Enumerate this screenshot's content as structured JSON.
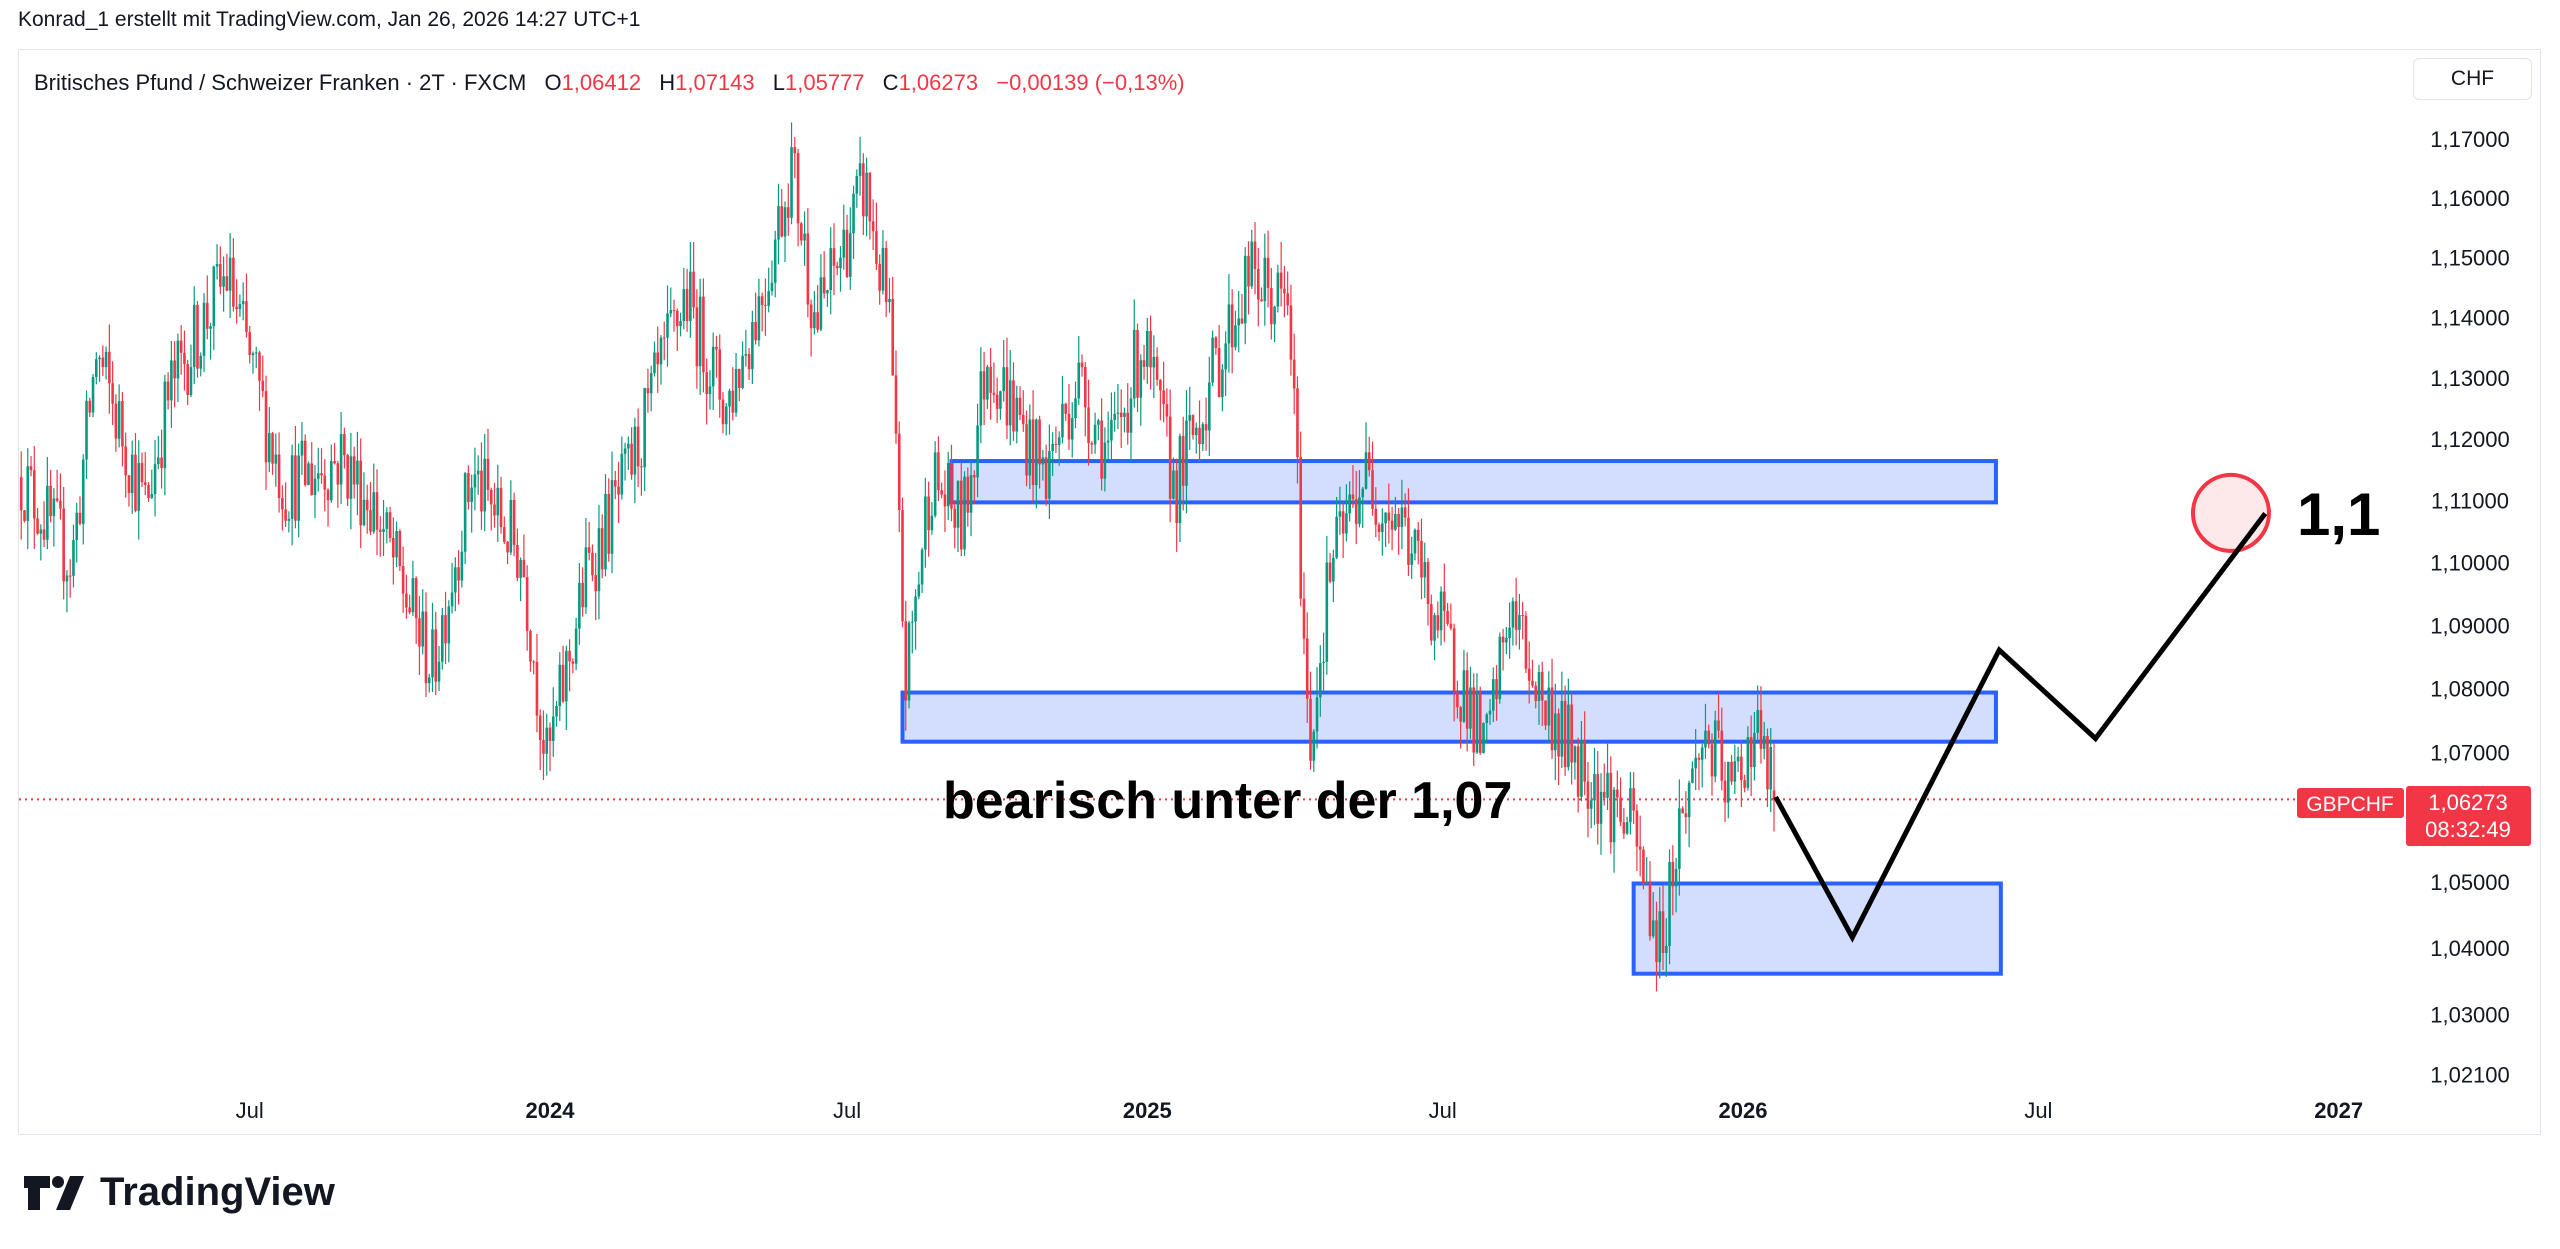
{
  "credit": "Konrad_1 erstellt mit TradingView.com, Jan 26, 2026 14:27 UTC+1",
  "legend": {
    "title": "Britisches Pfund / Schweizer Franken · 2T · FXCM",
    "o_label": "O",
    "o": "1,06412",
    "h_label": "H",
    "h": "1,07143",
    "l_label": "L",
    "l": "1,05777",
    "c_label": "C",
    "c": "1,06273",
    "change": "−0,00139 (−0,13%)"
  },
  "currency": "CHF",
  "price_label": {
    "symbol": "GBPCHF",
    "price": "1,06273",
    "countdown": "08:32:49"
  },
  "brand": "TradingView",
  "annotations": {
    "text_bearish": "bearisch unter der 1,07",
    "text_target": "1,1"
  },
  "colors": {
    "up": "#089981",
    "down": "#F23645",
    "zone_fill": "#d3defe",
    "zone_border": "#2962ff",
    "path": "#000000",
    "target_circle": "#F23645"
  },
  "chart_data": {
    "type": "candlestick",
    "symbol": "GBPCHF",
    "interval": "2T",
    "y_scale": "log",
    "ylim": [
      1.021,
      1.175
    ],
    "y_ticks": [
      "1,17000",
      "1,16000",
      "1,15000",
      "1,14000",
      "1,13000",
      "1,12000",
      "1,11000",
      "1,10000",
      "1,09000",
      "1,08000",
      "1,07000",
      "1,05000",
      "1,04000",
      "1,03000",
      "1,02100"
    ],
    "y_tick_values": [
      1.17,
      1.16,
      1.15,
      1.14,
      1.13,
      1.12,
      1.11,
      1.1,
      1.09,
      1.08,
      1.07,
      1.05,
      1.04,
      1.03,
      1.021
    ],
    "x_ticks": [
      {
        "label": "Jul",
        "date": "2023-07-01",
        "bold": false
      },
      {
        "label": "2024",
        "date": "2024-01-01",
        "bold": true
      },
      {
        "label": "Jul",
        "date": "2024-07-01",
        "bold": false
      },
      {
        "label": "2025",
        "date": "2025-01-01",
        "bold": true
      },
      {
        "label": "Jul",
        "date": "2025-07-01",
        "bold": false
      },
      {
        "label": "2026",
        "date": "2026-01-01",
        "bold": true
      },
      {
        "label": "Jul",
        "date": "2026-07-01",
        "bold": false
      },
      {
        "label": "2027",
        "date": "2027-01-01",
        "bold": true
      }
    ],
    "last": {
      "open": 1.06412,
      "high": 1.07143,
      "low": 1.05777,
      "close": 1.06273
    },
    "price_path": [
      [
        "2023-02-15",
        1.112
      ],
      [
        "2023-03-14",
        1.1
      ],
      [
        "2023-03-29",
        1.134
      ],
      [
        "2023-04-28",
        1.109
      ],
      [
        "2023-05-13",
        1.128
      ],
      [
        "2023-06-17",
        1.147
      ],
      [
        "2023-07-22",
        1.112
      ],
      [
        "2023-08-26",
        1.117
      ],
      [
        "2023-09-15",
        1.109
      ],
      [
        "2023-10-21",
        1.083
      ],
      [
        "2023-11-14",
        1.114
      ],
      [
        "2023-12-15",
        1.101
      ],
      [
        "2023-12-30",
        1.068
      ],
      [
        "2024-01-24",
        1.099
      ],
      [
        "2024-02-18",
        1.114
      ],
      [
        "2024-03-24",
        1.144
      ],
      [
        "2024-04-18",
        1.125
      ],
      [
        "2024-05-13",
        1.147
      ],
      [
        "2024-05-28",
        1.166
      ],
      [
        "2024-06-12",
        1.139
      ],
      [
        "2024-07-12",
        1.162
      ],
      [
        "2024-07-27",
        1.139
      ],
      [
        "2024-08-06",
        1.081
      ],
      [
        "2024-08-21",
        1.114
      ],
      [
        "2024-09-10",
        1.106
      ],
      [
        "2024-09-25",
        1.134
      ],
      [
        "2024-10-30",
        1.114
      ],
      [
        "2024-11-19",
        1.13
      ],
      [
        "2024-12-09",
        1.117
      ],
      [
        "2024-12-29",
        1.136
      ],
      [
        "2025-01-18",
        1.112
      ],
      [
        "2025-02-07",
        1.128
      ],
      [
        "2025-03-04",
        1.147
      ],
      [
        "2025-03-29",
        1.141
      ],
      [
        "2025-04-03",
        1.112
      ],
      [
        "2025-04-10",
        1.07
      ],
      [
        "2025-04-23",
        1.099
      ],
      [
        "2025-05-13",
        1.114
      ],
      [
        "2025-06-07",
        1.106
      ],
      [
        "2025-06-27",
        1.091
      ],
      [
        "2025-07-17",
        1.078
      ],
      [
        "2025-07-27",
        1.069
      ],
      [
        "2025-08-11",
        1.093
      ],
      [
        "2025-08-31",
        1.078
      ],
      [
        "2025-09-20",
        1.07
      ],
      [
        "2025-10-25",
        1.058
      ],
      [
        "2025-11-11",
        1.04
      ],
      [
        "2025-11-24",
        1.06
      ],
      [
        "2025-12-09",
        1.073
      ],
      [
        "2025-12-24",
        1.063
      ],
      [
        "2026-01-08",
        1.074
      ],
      [
        "2026-01-21",
        1.06273
      ]
    ],
    "current_price": 1.06273,
    "zones": [
      {
        "from": "2024-09-03",
        "to": "2026-06-05",
        "top": 1.1164,
        "bottom": 1.1097
      },
      {
        "from": "2024-08-04",
        "to": "2026-06-05",
        "top": 1.0794,
        "bottom": 1.0717
      },
      {
        "from": "2025-10-26",
        "to": "2026-06-08",
        "top": 1.0498,
        "bottom": 1.0361
      }
    ],
    "projection_path": [
      [
        "2026-01-21",
        1.0631
      ],
      [
        "2026-03-09",
        1.0416
      ],
      [
        "2026-06-07",
        1.0861
      ],
      [
        "2026-08-05",
        1.0722
      ],
      [
        "2026-11-17",
        1.1079
      ]
    ],
    "target_marker": {
      "date": "2026-10-27",
      "price": 1.108
    }
  }
}
